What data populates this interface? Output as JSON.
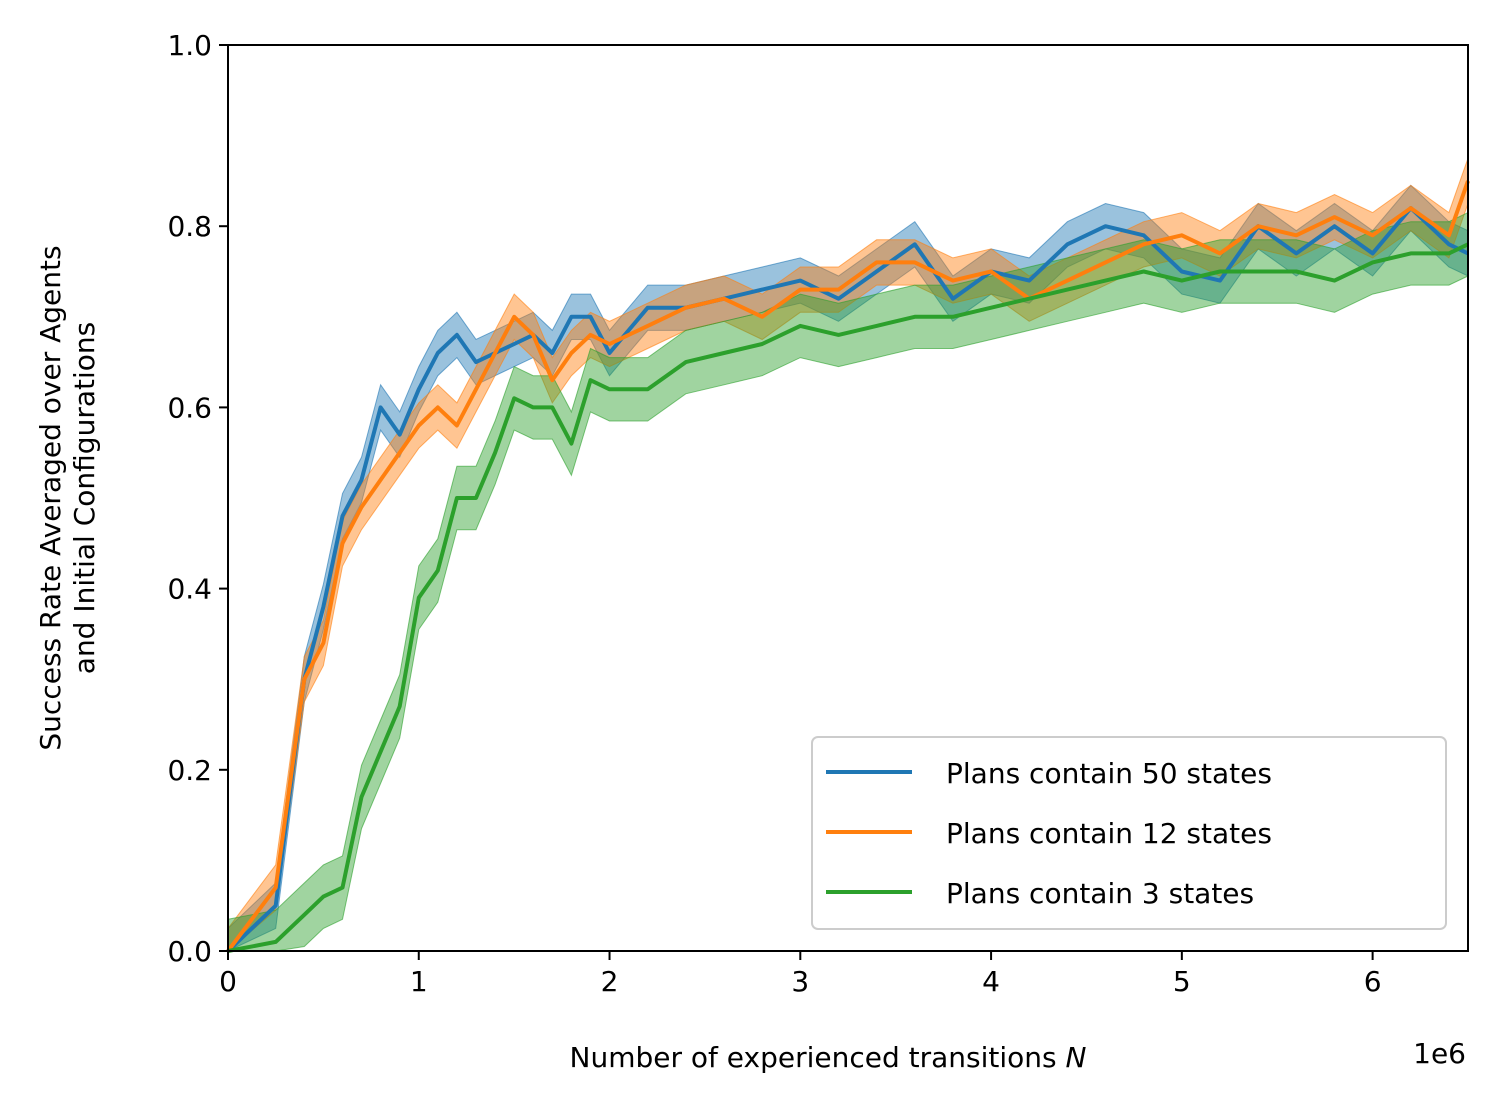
{
  "chart_data": {
    "type": "line",
    "title": "",
    "xlabel": "Number of experienced transitions",
    "xlabel_var": "N",
    "ylabel": "Success Rate Averaged over Agents\nand Initial Configurations",
    "x_offset_label": "1e6",
    "xlim": [
      0,
      6.5
    ],
    "ylim": [
      0.0,
      1.0
    ],
    "x_ticks": [
      0,
      1,
      2,
      3,
      4,
      5,
      6
    ],
    "y_ticks": [
      0.0,
      0.2,
      0.4,
      0.6,
      0.8,
      1.0
    ],
    "x_tick_labels": [
      "0",
      "1",
      "2",
      "3",
      "4",
      "5",
      "6"
    ],
    "y_tick_labels": [
      "0.0",
      "0.2",
      "0.4",
      "0.6",
      "0.8",
      "1.0"
    ],
    "grid": false,
    "legend_position": "lower right",
    "shaded_band": true,
    "x": [
      0,
      0.25,
      0.4,
      0.5,
      0.6,
      0.7,
      0.8,
      0.9,
      1.0,
      1.1,
      1.2,
      1.3,
      1.4,
      1.5,
      1.6,
      1.7,
      1.8,
      1.9,
      2.0,
      2.2,
      2.4,
      2.6,
      2.8,
      3.0,
      3.2,
      3.4,
      3.6,
      3.8,
      4.0,
      4.2,
      4.4,
      4.6,
      4.8,
      5.0,
      5.2,
      5.4,
      5.6,
      5.8,
      6.0,
      6.2,
      6.4,
      6.5
    ],
    "series": [
      {
        "name": "Plans contain 50 states",
        "color": "#1f77b4",
        "values": [
          0.0,
          0.05,
          0.3,
          0.38,
          0.48,
          0.52,
          0.6,
          0.57,
          0.62,
          0.66,
          0.68,
          0.65,
          0.66,
          0.67,
          0.68,
          0.66,
          0.7,
          0.7,
          0.66,
          0.71,
          0.71,
          0.72,
          0.73,
          0.74,
          0.72,
          0.75,
          0.78,
          0.72,
          0.75,
          0.74,
          0.78,
          0.8,
          0.79,
          0.75,
          0.74,
          0.8,
          0.77,
          0.8,
          0.77,
          0.82,
          0.78,
          0.77
        ],
        "band": 0.025
      },
      {
        "name": "Plans contain 12 states",
        "color": "#ff7f0e",
        "values": [
          0.0,
          0.07,
          0.3,
          0.34,
          0.45,
          0.49,
          0.52,
          0.55,
          0.58,
          0.6,
          0.58,
          0.62,
          0.66,
          0.7,
          0.68,
          0.63,
          0.66,
          0.68,
          0.67,
          0.69,
          0.71,
          0.72,
          0.7,
          0.73,
          0.73,
          0.76,
          0.76,
          0.74,
          0.75,
          0.72,
          0.74,
          0.76,
          0.78,
          0.79,
          0.77,
          0.8,
          0.79,
          0.81,
          0.79,
          0.82,
          0.79,
          0.85
        ],
        "band": 0.025
      },
      {
        "name": "Plans contain 3 states",
        "color": "#2ca02c",
        "values": [
          0.0,
          0.01,
          0.04,
          0.06,
          0.07,
          0.17,
          0.22,
          0.27,
          0.39,
          0.42,
          0.5,
          0.5,
          0.55,
          0.61,
          0.6,
          0.6,
          0.56,
          0.63,
          0.62,
          0.62,
          0.65,
          0.66,
          0.67,
          0.69,
          0.68,
          0.69,
          0.7,
          0.7,
          0.71,
          0.72,
          0.73,
          0.74,
          0.75,
          0.74,
          0.75,
          0.75,
          0.75,
          0.74,
          0.76,
          0.77,
          0.77,
          0.78
        ],
        "band": 0.035
      }
    ]
  }
}
